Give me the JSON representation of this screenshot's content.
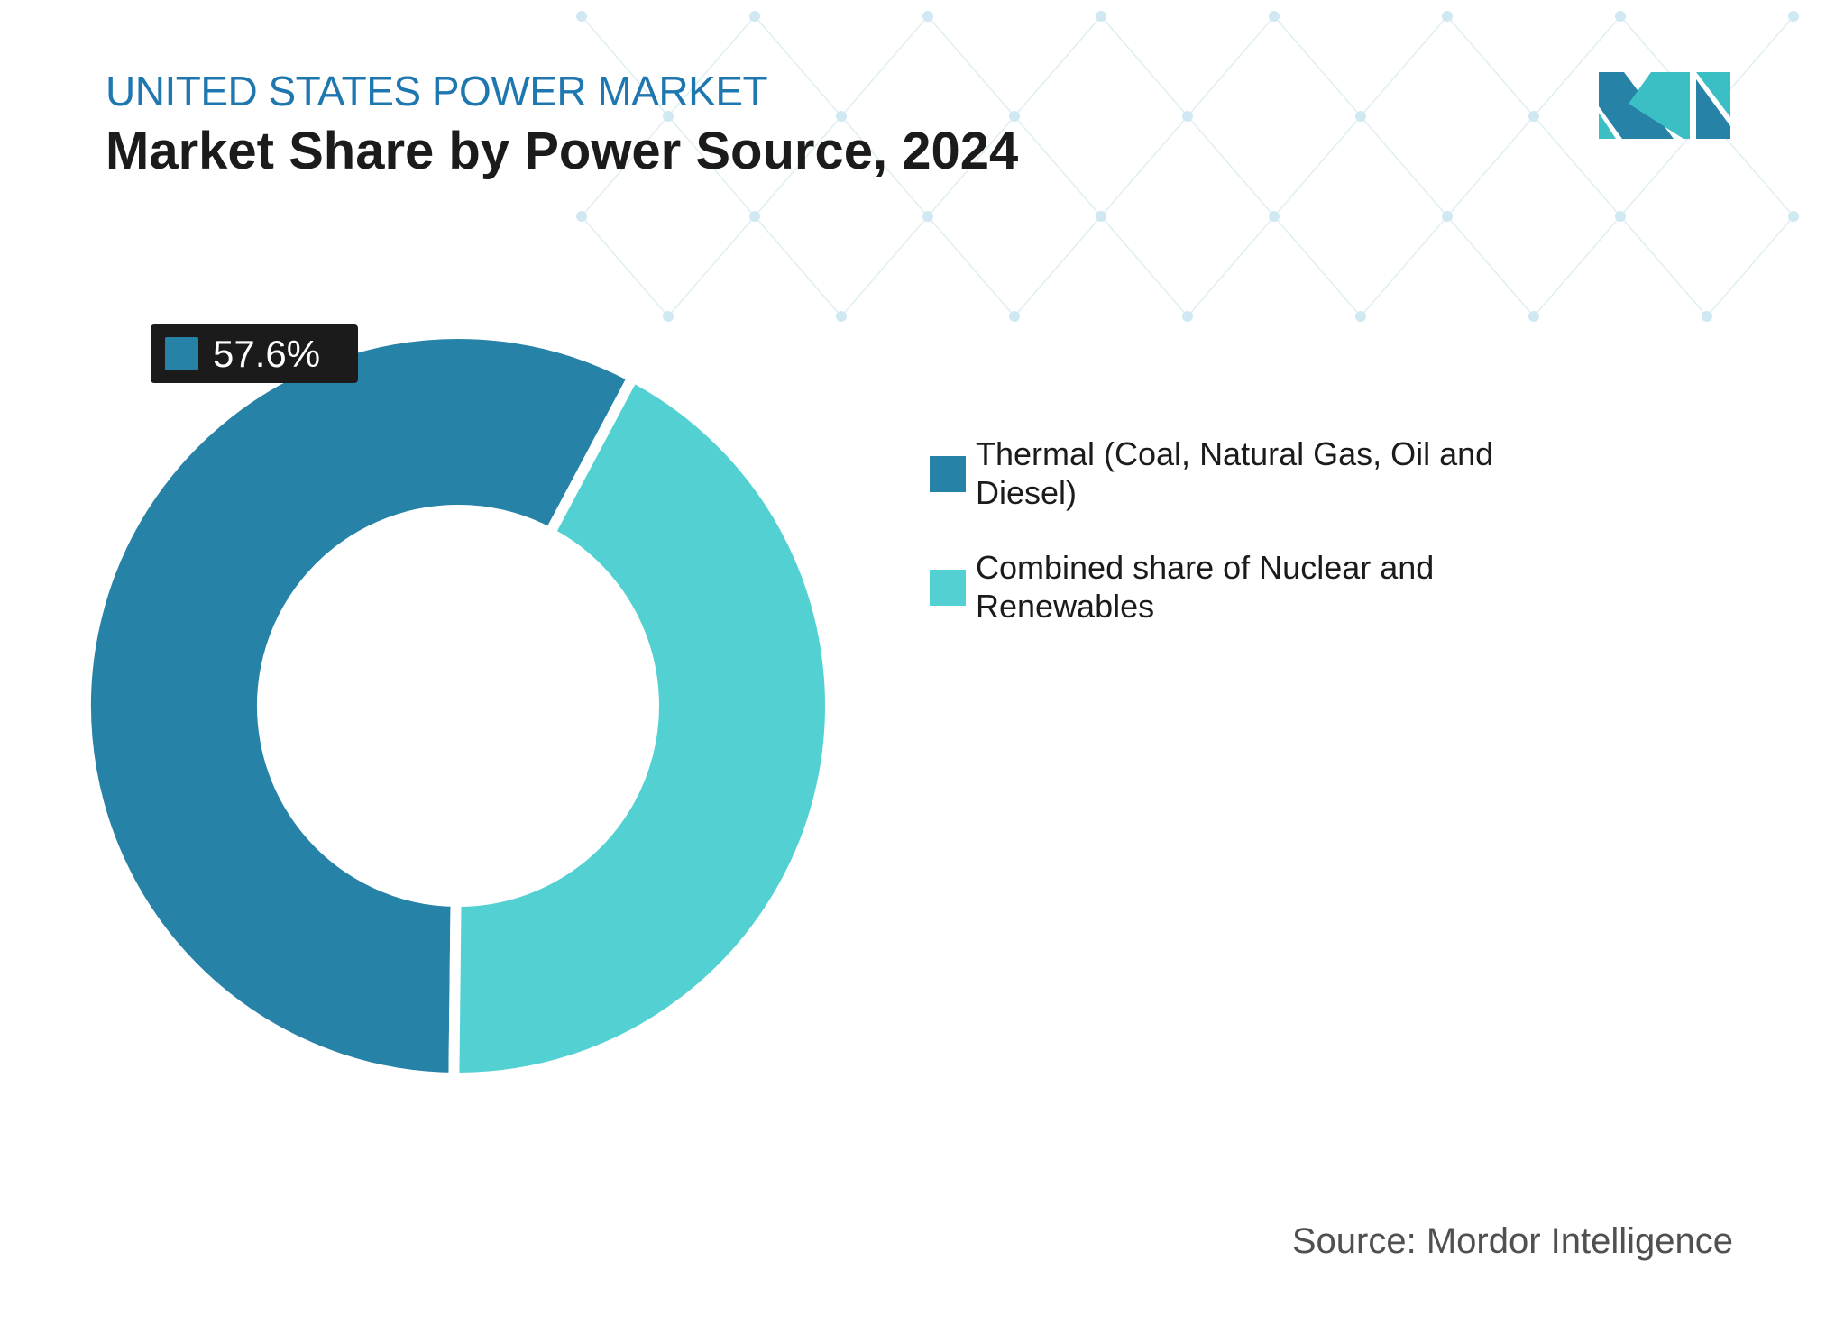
{
  "header": {
    "subtitle": "UNITED STATES POWER MARKET",
    "title": "Market Share by Power Source, 2024"
  },
  "chart_data": {
    "type": "pie",
    "variant": "donut",
    "categories": [
      "Thermal (Coal, Natural Gas, Oil and Diesel)",
      "Combined share of Nuclear and Renewables"
    ],
    "values": [
      57.6,
      42.4
    ],
    "colors": [
      "#2682a7",
      "#52d0d2"
    ],
    "data_labels": [
      "57.6%",
      ""
    ],
    "legend_position": "right"
  },
  "source": "Source: Mordor Intelligence",
  "colors": {
    "subtitle": "#1f77b0",
    "logo_dark": "#2682a7",
    "logo_light": "#3bbfc4"
  }
}
